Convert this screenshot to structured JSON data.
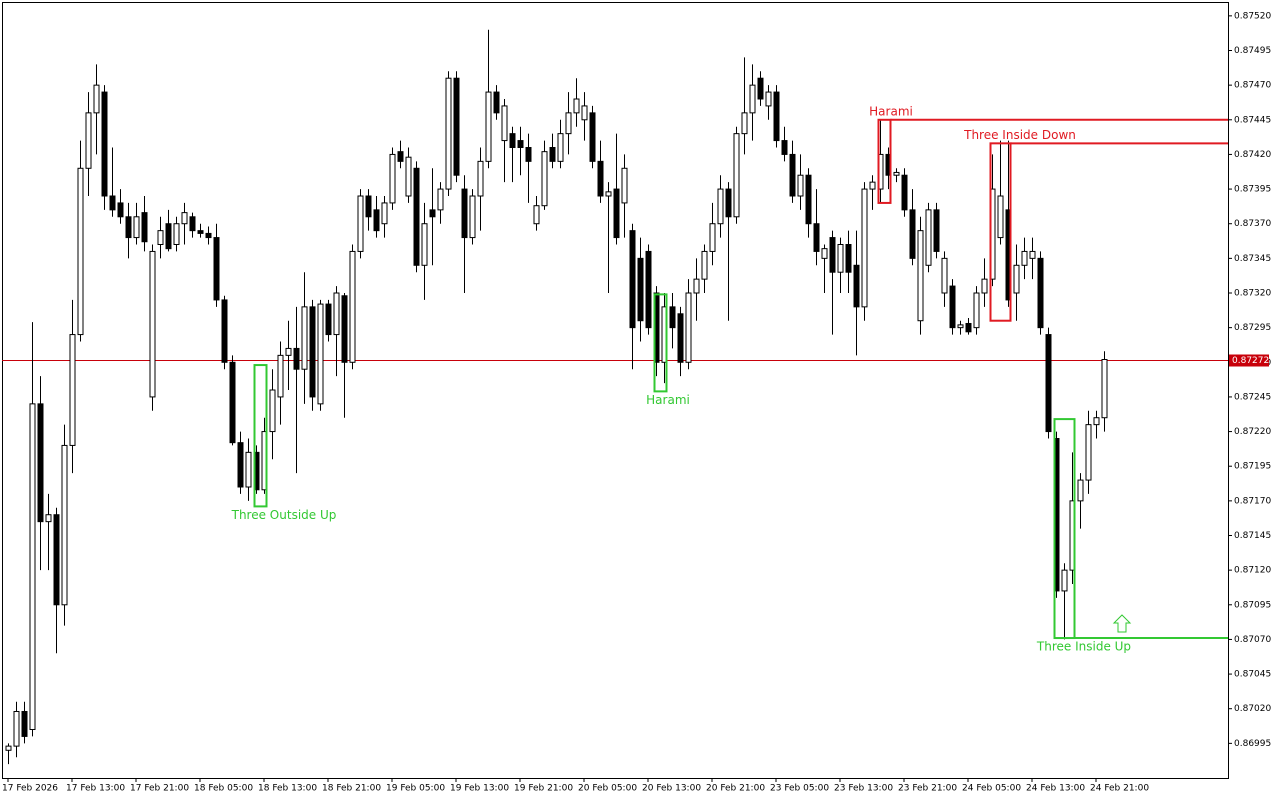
{
  "chart_data": {
    "type": "candlestick",
    "categories": [
      "17 Feb 2026",
      null,
      null,
      null,
      null,
      null,
      null,
      null,
      "17 Feb 13:00",
      null,
      null,
      null,
      null,
      null,
      null,
      null,
      "17 Feb 21:00",
      null,
      null,
      null,
      null,
      null,
      null,
      null,
      "18 Feb 05:00",
      null,
      null,
      null,
      null,
      null,
      null,
      null,
      "18 Feb 13:00",
      null,
      null,
      null,
      null,
      null,
      null,
      null,
      "18 Feb 21:00",
      null,
      null,
      null,
      null,
      null,
      null,
      null,
      "19 Feb 05:00",
      null,
      null,
      null,
      null,
      null,
      null,
      null,
      "19 Feb 13:00",
      null,
      null,
      null,
      null,
      null,
      null,
      null,
      "19 Feb 21:00",
      null,
      null,
      null,
      null,
      null,
      null,
      null,
      "20 Feb 05:00",
      null,
      null,
      null,
      null,
      null,
      null,
      null,
      "20 Feb 13:00",
      null,
      null,
      null,
      null,
      null,
      null,
      null,
      "20 Feb 21:00",
      null,
      null,
      null,
      null,
      null,
      null,
      null,
      "23 Feb 05:00",
      null,
      null,
      null,
      null,
      null,
      null,
      null,
      "23 Feb 13:00",
      null,
      null,
      null,
      null,
      null,
      null,
      null,
      "23 Feb 21:00",
      null,
      null,
      null,
      null,
      null,
      null,
      null,
      "24 Feb 05:00",
      null,
      null,
      null,
      null,
      null,
      null,
      null,
      "24 Feb 13:00",
      null,
      null,
      null,
      null,
      null,
      null,
      null,
      "24 Feb 21:00",
      null
    ],
    "open": [
      0.8699,
      0.86993,
      0.87018,
      0.87005,
      0.8724,
      0.87155,
      0.8716,
      0.87095,
      0.8721,
      0.8729,
      0.8741,
      0.8745,
      0.87465,
      0.8739,
      0.87385,
      0.87375,
      0.8736,
      0.87378,
      0.87245,
      0.87355,
      0.8737,
      0.87355,
      0.8737,
      0.87375,
      0.87365,
      0.87363,
      0.8736,
      0.87315,
      0.8727,
      0.87212,
      0.8718,
      0.87205,
      0.87178,
      0.8722,
      0.87245,
      0.87275,
      0.8728,
      0.87265,
      0.8731,
      0.8724,
      0.87312,
      0.8729,
      0.87318,
      0.8727,
      0.8735,
      0.8739,
      0.8738,
      0.8737,
      0.87385,
      0.87422,
      0.8739,
      0.8741,
      0.8734,
      0.8738,
      0.8738,
      0.87395,
      0.87475,
      0.87395,
      0.8736,
      0.8739,
      0.87415,
      0.87465,
      0.8743,
      0.87435,
      0.8743,
      0.87425,
      0.8737,
      0.87383,
      0.87425,
      0.87415,
      0.87435,
      0.8745,
      0.87445,
      0.8745,
      0.87415,
      0.8739,
      0.87395,
      0.87385,
      0.87365,
      0.87345,
      0.8735,
      0.8732,
      0.8727,
      0.8731,
      0.87305,
      0.8727,
      0.8732,
      0.8733,
      0.8735,
      0.8737,
      0.87395,
      0.87375,
      0.87435,
      0.8745,
      0.87475,
      0.87455,
      0.87465,
      0.8743,
      0.8742,
      0.8739,
      0.87405,
      0.8737,
      0.87345,
      0.8736,
      0.87335,
      0.87355,
      0.8734,
      0.8731,
      0.87395,
      0.87395,
      0.8742,
      0.87405,
      0.87405,
      0.8738,
      0.873,
      0.8734,
      0.8738,
      0.8732,
      0.87325,
      0.87295,
      0.87298,
      0.87295,
      0.8732,
      0.8733,
      0.8736,
      0.8738,
      0.8732,
      0.8734,
      0.87345,
      0.87345,
      0.8729,
      0.87215,
      0.87105,
      0.8712,
      0.8717,
      0.87185,
      0.87225,
      0.8723
    ],
    "high": [
      0.86995,
      0.87025,
      0.87025,
      0.87299,
      0.8726,
      0.87175,
      0.87165,
      0.87225,
      0.87315,
      0.8743,
      0.87465,
      0.87485,
      0.8747,
      0.87425,
      0.87395,
      0.87385,
      0.87385,
      0.8739,
      0.87355,
      0.87375,
      0.8738,
      0.87375,
      0.87385,
      0.87378,
      0.8737,
      0.87368,
      0.8737,
      0.87318,
      0.87275,
      0.8722,
      0.87215,
      0.8721,
      0.8723,
      0.87265,
      0.87285,
      0.873,
      0.8731,
      0.87335,
      0.87315,
      0.87315,
      0.87315,
      0.87325,
      0.8732,
      0.87355,
      0.87395,
      0.87395,
      0.8739,
      0.8739,
      0.87425,
      0.8743,
      0.87425,
      0.87415,
      0.87385,
      0.8741,
      0.874,
      0.8748,
      0.8748,
      0.87405,
      0.87395,
      0.87425,
      0.8751,
      0.8747,
      0.8746,
      0.8744,
      0.8744,
      0.87435,
      0.8739,
      0.8743,
      0.87435,
      0.87445,
      0.87465,
      0.87475,
      0.87465,
      0.87455,
      0.8743,
      0.874,
      0.87435,
      0.8742,
      0.8737,
      0.8736,
      0.87355,
      0.87325,
      0.8732,
      0.8732,
      0.8731,
      0.8733,
      0.87345,
      0.87355,
      0.87385,
      0.87405,
      0.874,
      0.8744,
      0.8749,
      0.87485,
      0.8748,
      0.8747,
      0.8747,
      0.8744,
      0.8743,
      0.8742,
      0.8741,
      0.87395,
      0.87355,
      0.87365,
      0.8736,
      0.87365,
      0.87365,
      0.874,
      0.87405,
      0.87445,
      0.87425,
      0.8741,
      0.8741,
      0.87395,
      0.87375,
      0.87385,
      0.87385,
      0.8735,
      0.8733,
      0.873,
      0.87302,
      0.87325,
      0.87345,
      0.8742,
      0.8743,
      0.8743,
      0.87355,
      0.8736,
      0.8736,
      0.8735,
      0.87295,
      0.8722,
      0.87125,
      0.87205,
      0.8719,
      0.87235,
      0.87235,
      0.87278
    ],
    "low": [
      0.8698,
      0.86985,
      0.86995,
      0.87,
      0.8712,
      0.8712,
      0.8706,
      0.8708,
      0.8719,
      0.87285,
      0.8739,
      0.8742,
      0.8738,
      0.87375,
      0.8737,
      0.87345,
      0.87355,
      0.8735,
      0.87235,
      0.87345,
      0.8735,
      0.8735,
      0.87355,
      0.8736,
      0.8736,
      0.87355,
      0.8731,
      0.87265,
      0.8721,
      0.87175,
      0.8717,
      0.87175,
      0.87175,
      0.872,
      0.87225,
      0.8725,
      0.8719,
      0.8724,
      0.87235,
      0.87235,
      0.87285,
      0.8726,
      0.8723,
      0.87265,
      0.87345,
      0.87365,
      0.8736,
      0.8736,
      0.8738,
      0.8741,
      0.87385,
      0.87335,
      0.87315,
      0.8734,
      0.8737,
      0.8739,
      0.874,
      0.8732,
      0.87355,
      0.87365,
      0.8741,
      0.87445,
      0.874,
      0.874,
      0.87405,
      0.87385,
      0.87365,
      0.8738,
      0.8741,
      0.8741,
      0.8742,
      0.8744,
      0.8743,
      0.8741,
      0.87385,
      0.8732,
      0.87355,
      0.8736,
      0.87265,
      0.87285,
      0.8729,
      0.8726,
      0.87255,
      0.8728,
      0.8726,
      0.87265,
      0.873,
      0.8732,
      0.8734,
      0.8736,
      0.873,
      0.8737,
      0.8742,
      0.8743,
      0.87455,
      0.87445,
      0.87425,
      0.87415,
      0.87385,
      0.8738,
      0.8736,
      0.8734,
      0.8732,
      0.8729,
      0.8732,
      0.8732,
      0.87275,
      0.873,
      0.8738,
      0.87385,
      0.87395,
      0.874,
      0.87375,
      0.8734,
      0.8729,
      0.87335,
      0.87345,
      0.8731,
      0.8729,
      0.8729,
      0.8729,
      0.8729,
      0.8731,
      0.87325,
      0.87355,
      0.8731,
      0.873,
      0.8733,
      0.8733,
      0.8729,
      0.87215,
      0.871,
      0.8707,
      0.8711,
      0.8715,
      0.87175,
      0.87215,
      0.8722
    ],
    "close": [
      0.86993,
      0.87018,
      0.87,
      0.8724,
      0.87155,
      0.8716,
      0.87095,
      0.8721,
      0.8729,
      0.8741,
      0.8745,
      0.8747,
      0.8739,
      0.8738,
      0.87375,
      0.8736,
      0.87375,
      0.87357,
      0.8735,
      0.87365,
      0.87352,
      0.8737,
      0.87378,
      0.87365,
      0.87363,
      0.8736,
      0.87315,
      0.8727,
      0.87212,
      0.8718,
      0.87205,
      0.87178,
      0.8722,
      0.8725,
      0.87275,
      0.8728,
      0.87265,
      0.8731,
      0.87245,
      0.87312,
      0.8729,
      0.8732,
      0.8727,
      0.8735,
      0.8739,
      0.87375,
      0.87365,
      0.87385,
      0.8742,
      0.87415,
      0.87418,
      0.8734,
      0.8737,
      0.87375,
      0.87395,
      0.87475,
      0.87405,
      0.8736,
      0.8739,
      0.87415,
      0.87465,
      0.8745,
      0.87455,
      0.87425,
      0.87425,
      0.87415,
      0.87383,
      0.87422,
      0.87415,
      0.87435,
      0.8745,
      0.8746,
      0.87455,
      0.87415,
      0.8739,
      0.87393,
      0.8736,
      0.8741,
      0.87295,
      0.873,
      0.87295,
      0.8727,
      0.8731,
      0.87295,
      0.8727,
      0.8732,
      0.8733,
      0.8735,
      0.8737,
      0.87395,
      0.87375,
      0.87435,
      0.8745,
      0.8747,
      0.8746,
      0.87465,
      0.8743,
      0.8742,
      0.8739,
      0.87405,
      0.8737,
      0.8735,
      0.87352,
      0.87335,
      0.87355,
      0.87335,
      0.8731,
      0.87395,
      0.874,
      0.8742,
      0.87405,
      0.87407,
      0.8738,
      0.87345,
      0.87365,
      0.8738,
      0.8735,
      0.87345,
      0.87295,
      0.87297,
      0.87292,
      0.8732,
      0.8733,
      0.87395,
      0.8739,
      0.87315,
      0.8734,
      0.8735,
      0.8735,
      0.87295,
      0.8722,
      0.87105,
      0.8712,
      0.8717,
      0.87185,
      0.87225,
      0.8723,
      0.87272
    ],
    "ylim": [
      0.8697,
      0.8753
    ],
    "yticks": [
      {
        "value": 0.8752,
        "label": "0.87520"
      },
      {
        "value": 0.87495,
        "label": "0.87495"
      },
      {
        "value": 0.8747,
        "label": "0.87470"
      },
      {
        "value": 0.87445,
        "label": "0.87445"
      },
      {
        "value": 0.8742,
        "label": "0.87420"
      },
      {
        "value": 0.87395,
        "label": "0.87395"
      },
      {
        "value": 0.8737,
        "label": "0.87370"
      },
      {
        "value": 0.87345,
        "label": "0.87345"
      },
      {
        "value": 0.8732,
        "label": "0.87320"
      },
      {
        "value": 0.87295,
        "label": "0.87295"
      },
      {
        "value": 0.8727,
        "label": "0.87270"
      },
      {
        "value": 0.87245,
        "label": "0.87245"
      },
      {
        "value": 0.8722,
        "label": "0.87220"
      },
      {
        "value": 0.87195,
        "label": "0.87195"
      },
      {
        "value": 0.8717,
        "label": "0.87170"
      },
      {
        "value": 0.87145,
        "label": "0.87145"
      },
      {
        "value": 0.8712,
        "label": "0.87120"
      },
      {
        "value": 0.87095,
        "label": "0.87095"
      },
      {
        "value": 0.8707,
        "label": "0.87070"
      },
      {
        "value": 0.87045,
        "label": "0.87045"
      },
      {
        "value": 0.8702,
        "label": "0.87020"
      },
      {
        "value": 0.86995,
        "label": "0.86995"
      }
    ],
    "current_price": 0.87272,
    "current_color": "#c8000a",
    "patterns": [
      {
        "label": "Three Outside Up",
        "color": "#32c832",
        "high": 0.87268,
        "low": 0.87166
      },
      {
        "label": "Harami",
        "color": "#32c832",
        "high": 0.87319,
        "low": 0.87249
      },
      {
        "label": "Harami",
        "color": "#e01a22",
        "high": 0.87445,
        "low": 0.87385,
        "level": 0.87445
      },
      {
        "label": "Three Inside Down",
        "color": "#e01a22",
        "high": 0.87428,
        "low": 0.873,
        "level": 0.87428
      },
      {
        "label": "Three Inside Up",
        "color": "#32c832",
        "high": 0.87229,
        "low": 0.87071,
        "level": 0.87071
      }
    ]
  }
}
